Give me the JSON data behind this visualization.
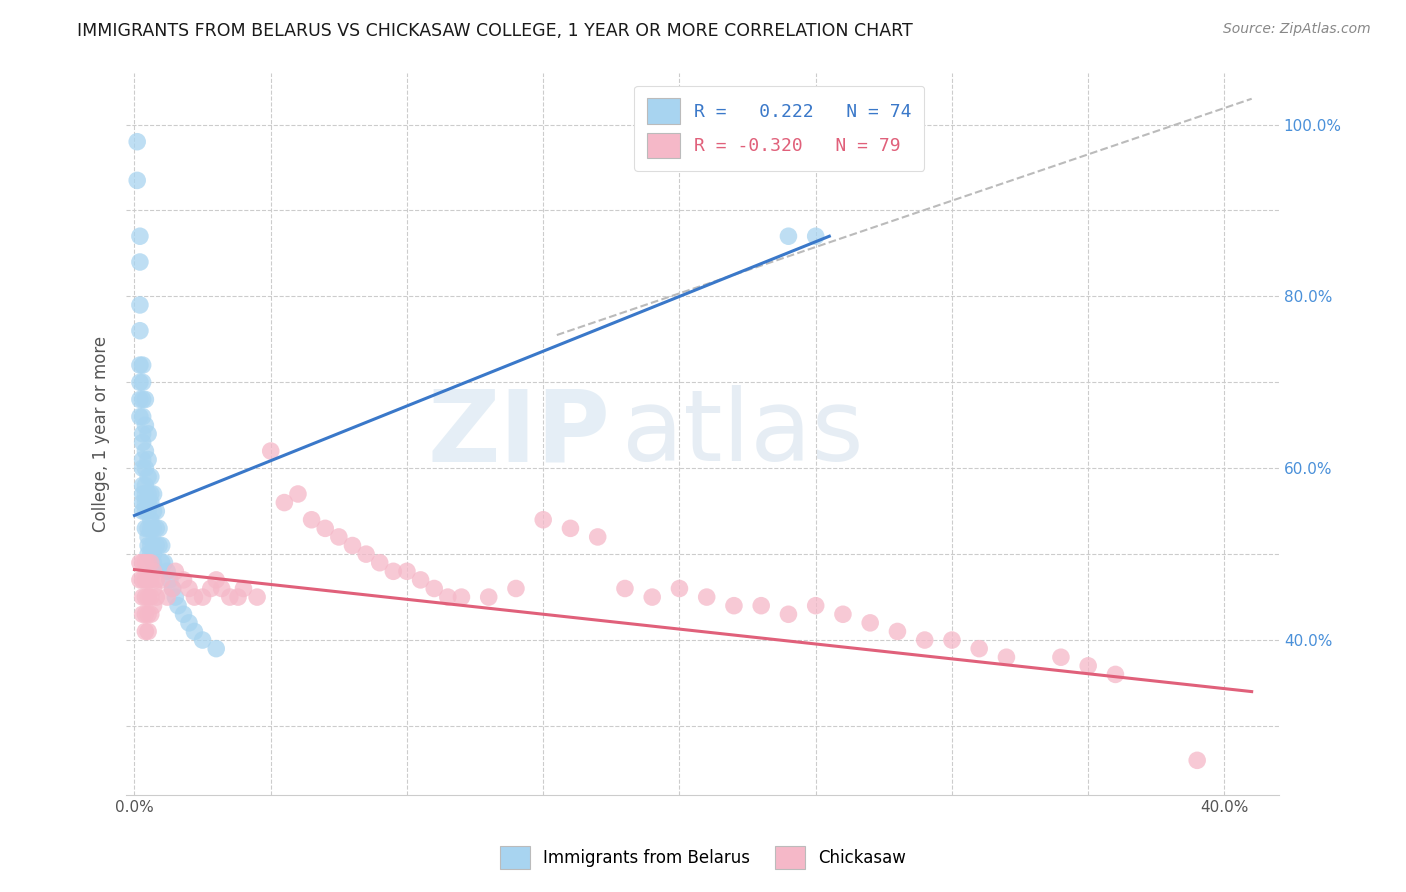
{
  "title": "IMMIGRANTS FROM BELARUS VS CHICKASAW COLLEGE, 1 YEAR OR MORE CORRELATION CHART",
  "source": "Source: ZipAtlas.com",
  "ylabel": "College, 1 year or more",
  "xlim": [
    -0.003,
    0.42
  ],
  "ylim": [
    0.22,
    1.06
  ],
  "legend_r1": "R =   0.222   N = 74",
  "legend_r2": "R = -0.320   N = 79",
  "blue_color": "#a8d4f0",
  "pink_color": "#f5b8c8",
  "blue_line_color": "#3a78c9",
  "pink_line_color": "#e0607a",
  "dashed_line_color": "#bbbbbb",
  "watermark_zip": "ZIP",
  "watermark_atlas": "atlas",
  "blue_scatter_x": [
    0.001,
    0.001,
    0.002,
    0.002,
    0.002,
    0.002,
    0.002,
    0.002,
    0.002,
    0.002,
    0.003,
    0.003,
    0.003,
    0.003,
    0.003,
    0.003,
    0.003,
    0.003,
    0.003,
    0.003,
    0.003,
    0.003,
    0.004,
    0.004,
    0.004,
    0.004,
    0.004,
    0.004,
    0.004,
    0.004,
    0.004,
    0.005,
    0.005,
    0.005,
    0.005,
    0.005,
    0.005,
    0.005,
    0.005,
    0.005,
    0.005,
    0.006,
    0.006,
    0.006,
    0.006,
    0.006,
    0.006,
    0.006,
    0.007,
    0.007,
    0.007,
    0.007,
    0.007,
    0.007,
    0.008,
    0.008,
    0.008,
    0.009,
    0.009,
    0.01,
    0.01,
    0.011,
    0.012,
    0.013,
    0.014,
    0.015,
    0.016,
    0.018,
    0.02,
    0.022,
    0.025,
    0.03,
    0.24,
    0.25
  ],
  "blue_scatter_y": [
    0.98,
    0.935,
    0.87,
    0.84,
    0.79,
    0.76,
    0.72,
    0.7,
    0.68,
    0.66,
    0.72,
    0.7,
    0.68,
    0.66,
    0.64,
    0.63,
    0.61,
    0.6,
    0.58,
    0.57,
    0.56,
    0.55,
    0.68,
    0.65,
    0.62,
    0.6,
    0.58,
    0.57,
    0.56,
    0.55,
    0.53,
    0.64,
    0.61,
    0.59,
    0.57,
    0.56,
    0.55,
    0.53,
    0.52,
    0.51,
    0.5,
    0.59,
    0.57,
    0.56,
    0.54,
    0.53,
    0.51,
    0.5,
    0.57,
    0.55,
    0.53,
    0.51,
    0.5,
    0.49,
    0.55,
    0.53,
    0.51,
    0.53,
    0.51,
    0.51,
    0.49,
    0.49,
    0.48,
    0.47,
    0.46,
    0.45,
    0.44,
    0.43,
    0.42,
    0.41,
    0.4,
    0.39,
    0.87,
    0.87
  ],
  "pink_scatter_x": [
    0.002,
    0.002,
    0.003,
    0.003,
    0.003,
    0.003,
    0.004,
    0.004,
    0.004,
    0.004,
    0.004,
    0.005,
    0.005,
    0.005,
    0.005,
    0.005,
    0.006,
    0.006,
    0.006,
    0.006,
    0.007,
    0.007,
    0.007,
    0.008,
    0.008,
    0.01,
    0.012,
    0.014,
    0.015,
    0.018,
    0.02,
    0.022,
    0.025,
    0.028,
    0.03,
    0.032,
    0.035,
    0.038,
    0.04,
    0.045,
    0.05,
    0.055,
    0.06,
    0.065,
    0.07,
    0.075,
    0.08,
    0.085,
    0.09,
    0.095,
    0.1,
    0.105,
    0.11,
    0.115,
    0.12,
    0.13,
    0.14,
    0.15,
    0.16,
    0.17,
    0.18,
    0.19,
    0.2,
    0.21,
    0.22,
    0.23,
    0.24,
    0.25,
    0.26,
    0.27,
    0.28,
    0.29,
    0.3,
    0.31,
    0.32,
    0.34,
    0.35,
    0.36,
    0.39
  ],
  "pink_scatter_y": [
    0.49,
    0.47,
    0.49,
    0.47,
    0.45,
    0.43,
    0.49,
    0.47,
    0.45,
    0.43,
    0.41,
    0.49,
    0.47,
    0.45,
    0.43,
    0.41,
    0.49,
    0.47,
    0.45,
    0.43,
    0.48,
    0.46,
    0.44,
    0.47,
    0.45,
    0.47,
    0.45,
    0.46,
    0.48,
    0.47,
    0.46,
    0.45,
    0.45,
    0.46,
    0.47,
    0.46,
    0.45,
    0.45,
    0.46,
    0.45,
    0.62,
    0.56,
    0.57,
    0.54,
    0.53,
    0.52,
    0.51,
    0.5,
    0.49,
    0.48,
    0.48,
    0.47,
    0.46,
    0.45,
    0.45,
    0.45,
    0.46,
    0.54,
    0.53,
    0.52,
    0.46,
    0.45,
    0.46,
    0.45,
    0.44,
    0.44,
    0.43,
    0.44,
    0.43,
    0.42,
    0.41,
    0.4,
    0.4,
    0.39,
    0.38,
    0.38,
    0.37,
    0.36,
    0.26
  ],
  "blue_trend_x": [
    0.0,
    0.255
  ],
  "blue_trend_y": [
    0.545,
    0.87
  ],
  "pink_trend_x": [
    0.0,
    0.41
  ],
  "pink_trend_y": [
    0.482,
    0.34
  ],
  "dashed_trend_x": [
    0.155,
    0.41
  ],
  "dashed_trend_y": [
    0.755,
    1.03
  ]
}
